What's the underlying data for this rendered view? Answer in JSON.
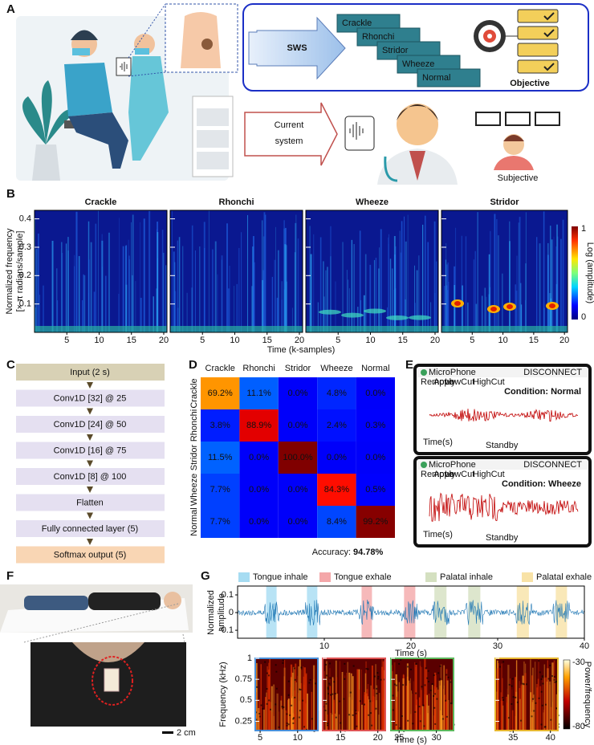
{
  "panel_a": {
    "label": "A",
    "sws": "SWS",
    "classes": [
      "Crackle",
      "Rhonchi",
      "Stridor",
      "Wheeze",
      "Normal"
    ],
    "objective": "Objective",
    "current_system": [
      "Current",
      "system"
    ],
    "subjective": "Subjective"
  },
  "panel_b": {
    "label": "B",
    "titles": [
      "Crackle",
      "Rhonchi",
      "Wheeze",
      "Stridor"
    ],
    "ylabel": [
      "Normalized frequency",
      "[× π radians/sample]"
    ],
    "ylim": [
      0,
      0.43
    ],
    "yticks": [
      0.1,
      0.2,
      0.3,
      0.4
    ],
    "xlim": [
      0,
      20.5
    ],
    "xticks": [
      5,
      10,
      15,
      20
    ],
    "xlabel": "Time (k-samples)",
    "colorbar_label": "Log (amplitude)",
    "colorbar_ticks": [
      1,
      0
    ]
  },
  "panel_c": {
    "label": "C",
    "layers": [
      "Input (2 s)",
      "Conv1D [32] @ 25",
      "Conv1D [24] @ 50",
      "Conv1D [16] @ 75",
      "Conv1D [8] @ 100",
      "Flatten",
      "Fully connected layer (5)",
      "Softmax output (5)"
    ]
  },
  "panel_d": {
    "label": "D",
    "classes": [
      "Crackle",
      "Rhonchi",
      "Stridor",
      "Wheeze",
      "Normal"
    ],
    "matrix": [
      [
        "69.2%",
        "11.1%",
        "0.0%",
        "4.8%",
        "0.0%"
      ],
      [
        "3.8%",
        "88.9%",
        "0.0%",
        "2.4%",
        "0.3%"
      ],
      [
        "11.5%",
        "0.0%",
        "100.0%",
        "0.0%",
        "0.0%"
      ],
      [
        "7.7%",
        "0.0%",
        "0.0%",
        "84.3%",
        "0.5%"
      ],
      [
        "7.7%",
        "0.0%",
        "0.0%",
        "8.4%",
        "99.2%"
      ]
    ],
    "accuracy_label": "Accuracy:",
    "accuracy": "94.78%"
  },
  "panel_e": {
    "label": "E",
    "app_name": "MicroPhone",
    "disconnect": "DISCONNECT",
    "buttons": [
      "Remove",
      "Apply",
      "LowCut",
      "HighCut"
    ],
    "x_axis": "Time(s)",
    "status": "Standby",
    "conditions": [
      "Condition: Normal",
      "Condition: Wheeze"
    ]
  },
  "panel_f": {
    "label": "F",
    "scale_bar": "2 cm"
  },
  "panel_g": {
    "label": "G",
    "legend": [
      {
        "name": "Tongue inhale",
        "color": "#a6dcf2",
        "intervals": [
          [
            3.3,
            4.5
          ],
          [
            8,
            9.2
          ]
        ]
      },
      {
        "name": "Tongue exhale",
        "color": "#f4a7a9",
        "intervals": [
          [
            14.3,
            15.5
          ],
          [
            19.2,
            20.5
          ]
        ]
      },
      {
        "name": "Palatal inhale",
        "color": "#d4e0c0",
        "intervals": [
          [
            22.7,
            24.1
          ],
          [
            26.6,
            28
          ]
        ]
      },
      {
        "name": "Palatal exhale",
        "color": "#f8e2a6",
        "intervals": [
          [
            32.2,
            33.6
          ],
          [
            36.7,
            38
          ]
        ]
      }
    ],
    "waveform": {
      "ylabel": [
        "Normalized",
        "amplitude"
      ],
      "ylim": [
        -0.145,
        0.15
      ],
      "yticks": [
        0.1,
        0,
        -0.1
      ],
      "xlim": [
        0,
        40
      ],
      "xticks": [
        10,
        20,
        30,
        40
      ],
      "xlabel": "Time (s)"
    },
    "spectrogram": {
      "ylabel": "Frequency (kHz)",
      "ylim": [
        0.14,
        1
      ],
      "yticks": [
        0.25,
        0.5,
        0.75,
        1
      ],
      "panels": [
        {
          "xlim": [
            4.35,
            12.7
          ],
          "xticks": [
            5,
            10
          ],
          "color": "#4a90d9"
        },
        {
          "xlim": [
            12.6,
            21
          ],
          "xticks": [
            15,
            20
          ],
          "color": "#e05555"
        },
        {
          "xlim": [
            23.9,
            32.3
          ],
          "xticks": [
            25,
            30
          ],
          "color": "#5cb85c"
        },
        {
          "xlim": [
            32.6,
            41
          ],
          "xticks": [
            35,
            40
          ],
          "color": "#e8b830"
        }
      ],
      "xlabel": "Time (s)",
      "colorbar_label": "Power/frequency",
      "colorbar_ticks": [
        -30,
        -80
      ]
    }
  }
}
